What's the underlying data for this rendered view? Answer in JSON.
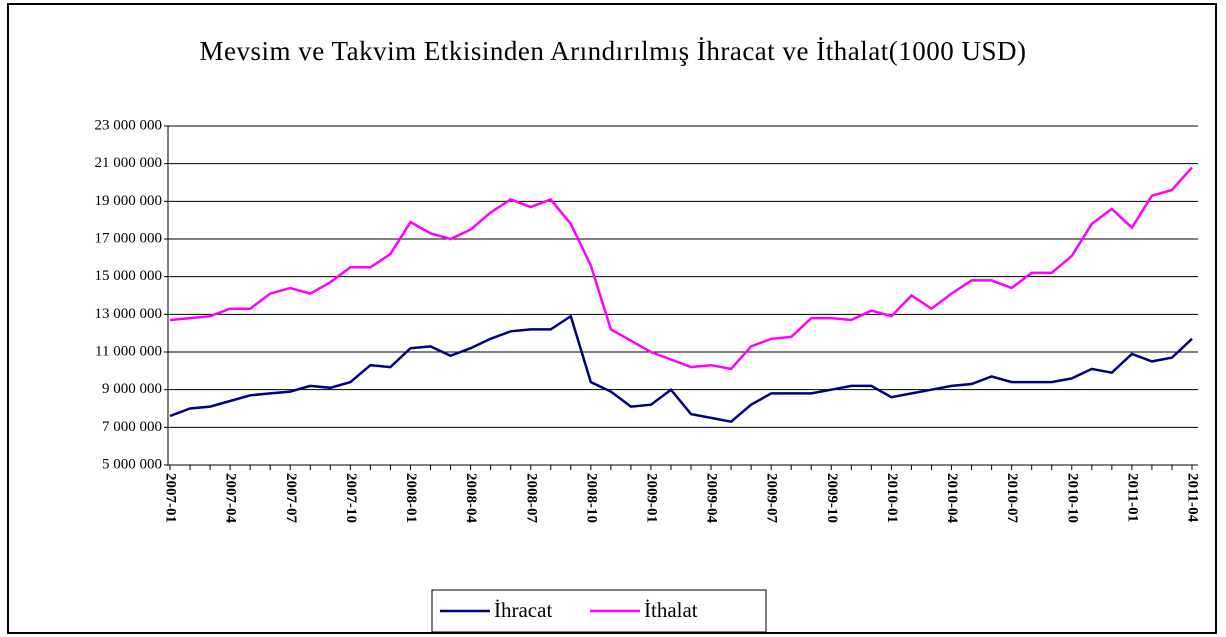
{
  "chart_data": {
    "type": "line",
    "title": "Mevsim ve Takvim Etkisinden Arındırılmış İhracat ve İthalat(1000 USD)",
    "categories": [
      "2007-01",
      null,
      null,
      "2007-04",
      null,
      null,
      "2007-07",
      null,
      null,
      "2007-10",
      null,
      null,
      "2008-01",
      null,
      null,
      "2008-04",
      null,
      null,
      "2008-07",
      null,
      null,
      "2008-10",
      null,
      null,
      "2009-01",
      null,
      null,
      "2009-04",
      null,
      null,
      "2009-07",
      null,
      null,
      "2009-10",
      null,
      null,
      "2010-01",
      null,
      null,
      "2010-04",
      null,
      null,
      "2010-07",
      null,
      null,
      "2010-10",
      null,
      null,
      "2011-01",
      null,
      null,
      "2011-04"
    ],
    "series": [
      {
        "name": "İhracat",
        "color": "#000080",
        "values": [
          7600000,
          8000000,
          8100000,
          8400000,
          8700000,
          8800000,
          8900000,
          9200000,
          9100000,
          9400000,
          10300000,
          10200000,
          11200000,
          11300000,
          10800000,
          11200000,
          11700000,
          12100000,
          12200000,
          12200000,
          12900000,
          9400000,
          8900000,
          8100000,
          8200000,
          9000000,
          7700000,
          7500000,
          7300000,
          8200000,
          8800000,
          8800000,
          8800000,
          9000000,
          9200000,
          9200000,
          8600000,
          8800000,
          9000000,
          9200000,
          9300000,
          9700000,
          9400000,
          9400000,
          9400000,
          9600000,
          10100000,
          9900000,
          10900000,
          10500000,
          10700000,
          11700000
        ]
      },
      {
        "name": "İthalat",
        "color": "#ff00ff",
        "values": [
          12700000,
          12800000,
          12900000,
          13300000,
          13300000,
          14100000,
          14400000,
          14100000,
          14700000,
          15500000,
          15500000,
          16200000,
          17900000,
          17300000,
          17000000,
          17500000,
          18400000,
          19100000,
          18700000,
          19100000,
          17800000,
          15600000,
          12200000,
          11600000,
          11000000,
          10600000,
          10200000,
          10300000,
          10100000,
          11300000,
          11700000,
          11800000,
          12800000,
          12800000,
          12700000,
          13200000,
          12900000,
          14000000,
          13300000,
          14100000,
          14800000,
          14800000,
          14400000,
          15200000,
          15200000,
          16100000,
          17800000,
          18600000,
          17600000,
          19300000,
          19600000,
          20800000
        ]
      }
    ],
    "ylim": [
      5000000,
      23000000
    ],
    "yticks": [
      {
        "value": 5000000,
        "label": "5 000 000"
      },
      {
        "value": 7000000,
        "label": "7 000 000"
      },
      {
        "value": 9000000,
        "label": "9 000 000"
      },
      {
        "value": 11000000,
        "label": "11 000 000"
      },
      {
        "value": 13000000,
        "label": "13 000 000"
      },
      {
        "value": 15000000,
        "label": "15 000 000"
      },
      {
        "value": 17000000,
        "label": "17 000 000"
      },
      {
        "value": 19000000,
        "label": "19 000 000"
      },
      {
        "value": 21000000,
        "label": "21 000 000"
      },
      {
        "value": 23000000,
        "label": "23 000 000"
      }
    ],
    "grid": true,
    "legend": "bottom"
  }
}
